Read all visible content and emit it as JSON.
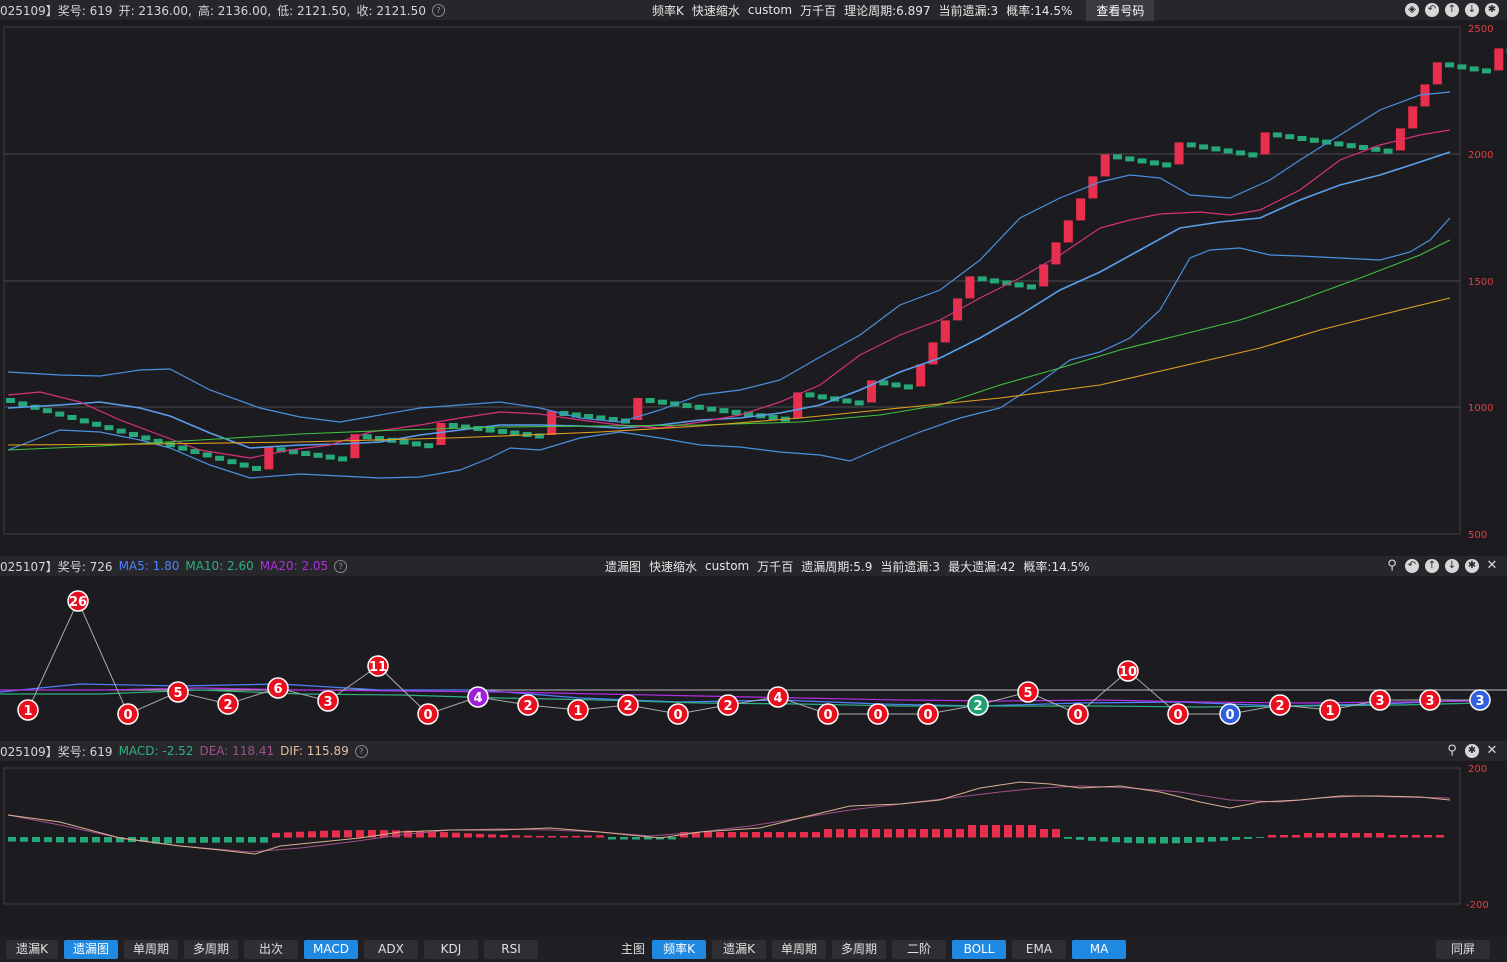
{
  "top_panel": {
    "info": {
      "prefix": "025109】奖号: 619",
      "open": "开: 2136.00,",
      "high": "高: 2136.00,",
      "low": "低: 2121.50,",
      "close": "收: 2121.50"
    },
    "center": [
      "频率K",
      "快速缩水",
      "custom",
      "万千百",
      "理论周期:6.897",
      "当前遗漏:3",
      "概率:14.5%"
    ],
    "view_button": "查看号码",
    "y_ticks": [
      "2500",
      "2000",
      "1500",
      "1000",
      "500"
    ]
  },
  "mid_panel": {
    "prefix": "025107】奖号: 726",
    "ma5": "MA5: 1.80",
    "ma10": "MA10: 2.60",
    "ma20": "MA20: 2.05",
    "center": [
      "遗漏图",
      "快速缩水",
      "custom",
      "万千百",
      "遗漏周期:5.9",
      "当前遗漏:3",
      "最大遗漏:42",
      "概率:14.5%"
    ],
    "points": [
      1,
      26,
      0,
      5,
      2,
      6,
      3,
      11,
      0,
      4,
      2,
      1,
      2,
      0,
      2,
      4,
      0,
      0,
      0,
      2,
      5,
      0,
      10,
      0,
      0,
      2,
      1,
      3,
      3,
      3
    ],
    "colors": {
      "red": "#e8101e",
      "purple": "#a020d8",
      "teal": "#20a070",
      "blue": "#3060e0"
    }
  },
  "macd_panel": {
    "prefix": "025109】奖号: 619",
    "macd": "MACD: -2.52",
    "dea": "DEA: 118.41",
    "dif": "DIF: 115.89",
    "y_ticks": [
      "200",
      "-200"
    ]
  },
  "bottom_left_tabs": [
    "遗漏K",
    "遗漏图",
    "单周期",
    "多周期",
    "出次",
    "MACD",
    "ADX",
    "KDJ",
    "RSI"
  ],
  "bottom_left_active": [
    "遗漏图",
    "MACD"
  ],
  "bottom_main_label": "主图",
  "bottom_right_tabs": [
    "频率K",
    "遗漏K",
    "单周期",
    "多周期",
    "二阶",
    "BOLL",
    "EMA",
    "MA"
  ],
  "bottom_right_active": [
    "频率K",
    "BOLL",
    "MA"
  ],
  "fullscreen": "同屏",
  "icons": [
    "compass-icon",
    "back-icon",
    "up-icon",
    "down-icon",
    "gear-icon",
    "pin-icon",
    "close-icon"
  ]
}
